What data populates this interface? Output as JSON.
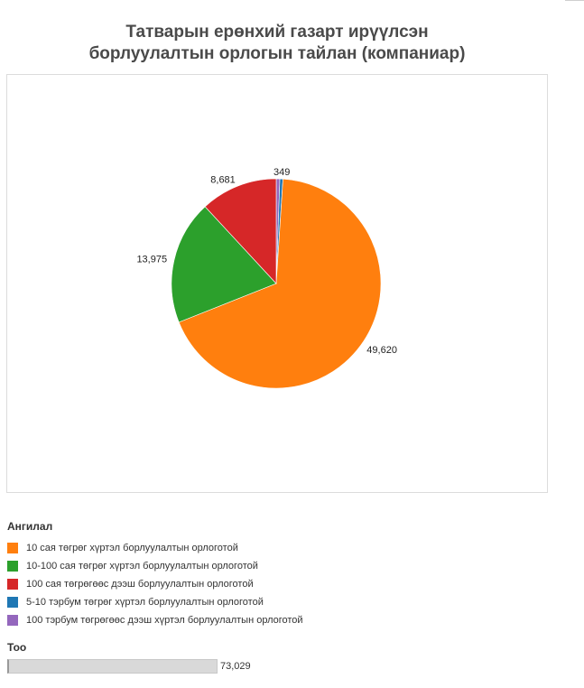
{
  "title_lines": [
    "Татварын ерөнхий газарт ирүүлсэн",
    "борлуулалтын орлогын тайлан (компаниар)"
  ],
  "legend": {
    "title": "Ангилал",
    "items": [
      {
        "label": "10 сая төгрөг хүртэл борлуулалтын орлоготой",
        "color": "#ff7f0e"
      },
      {
        "label": "10-100 сая төгрөг хүртэл борлуулалтын орлоготой",
        "color": "#2ca02c"
      },
      {
        "label": "100 сая төгрөгөөс дээш борлуулалтын орлоготой",
        "color": "#d62728"
      },
      {
        "label": "5-10 тэрбум төгрөг хүртэл борлуулалтын орлоготой",
        "color": "#1f77b4"
      },
      {
        "label": "100 тэрбум төгрөгөөс дээш  хүртэл борлуулалтын орлоготой",
        "color": "#9467bd"
      }
    ]
  },
  "size_legend": {
    "title": "Тоо",
    "value_label": "73,029",
    "value": 73029
  },
  "chart_data": {
    "type": "pie",
    "title": "Татварын ерөнхий газарт ирүүлсэн борлуулалтын орлогын тайлан (компаниар)",
    "categories": [
      "10 сая төгрөг хүртэл борлуулалтын орлоготой",
      "10-100 сая төгрөг хүртэл борлуулалтын орлоготой",
      "100 сая төгрөгөөс дээш борлуулалтын орлоготой",
      "5-10 тэрбум төгрөг хүртэл борлуулалтын орлоготой",
      "100 тэрбум төгрөгөөс дээш  хүртэл борлуулалтын орлоготой"
    ],
    "values": [
      49620,
      13975,
      8681,
      349,
      404
    ],
    "data_labels": [
      "49,620",
      "13,975",
      "8,681",
      "349",
      ""
    ],
    "colors": [
      "#ff7f0e",
      "#2ca02c",
      "#d62728",
      "#1f77b4",
      "#9467bd"
    ],
    "total": 73029
  }
}
